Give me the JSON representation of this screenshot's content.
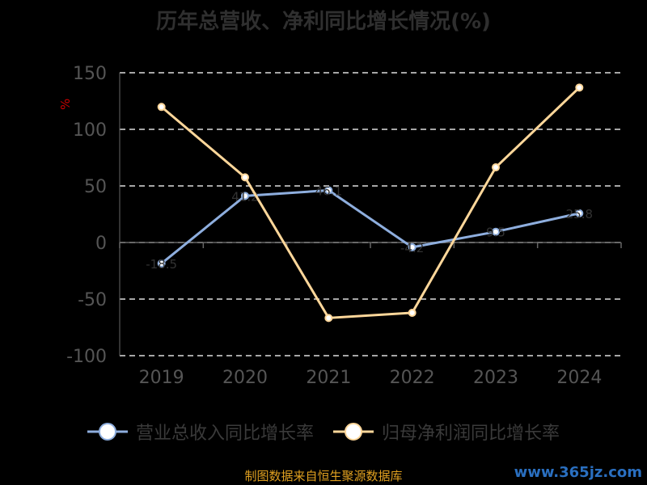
{
  "colors": {
    "revenue": "#8eaede",
    "profit": "#ffd79a",
    "grid": "#dddddd",
    "axis_text": "#555555",
    "unit": "#cc0000"
  },
  "chart_data": {
    "type": "line",
    "title": "历年总营收、净利同比增长情况(%)",
    "ylabel": "%",
    "x": [
      "2019",
      "2020",
      "2021",
      "2022",
      "2023",
      "2024"
    ],
    "ylim": [
      -100,
      150
    ],
    "yticks": [
      150,
      100,
      50,
      0,
      -50,
      -100
    ],
    "grid": true,
    "legend_position": "bottom",
    "series": [
      {
        "name": "营业总收入同比增长率",
        "values": [
          -18.5,
          41.2,
          46.1,
          -4.2,
          9.5,
          25.8
        ],
        "labels": [
          "-18.5",
          "41.2",
          "46.1",
          "-4.2",
          "9.5",
          "25.8"
        ]
      },
      {
        "name": "归母净利润同比增长率",
        "values": [
          119.8,
          57.6,
          -66.7,
          -62.1,
          66.4,
          136.9
        ]
      }
    ]
  },
  "source": "制图数据来自恒生聚源数据库",
  "watermark": "www.365jz.com"
}
